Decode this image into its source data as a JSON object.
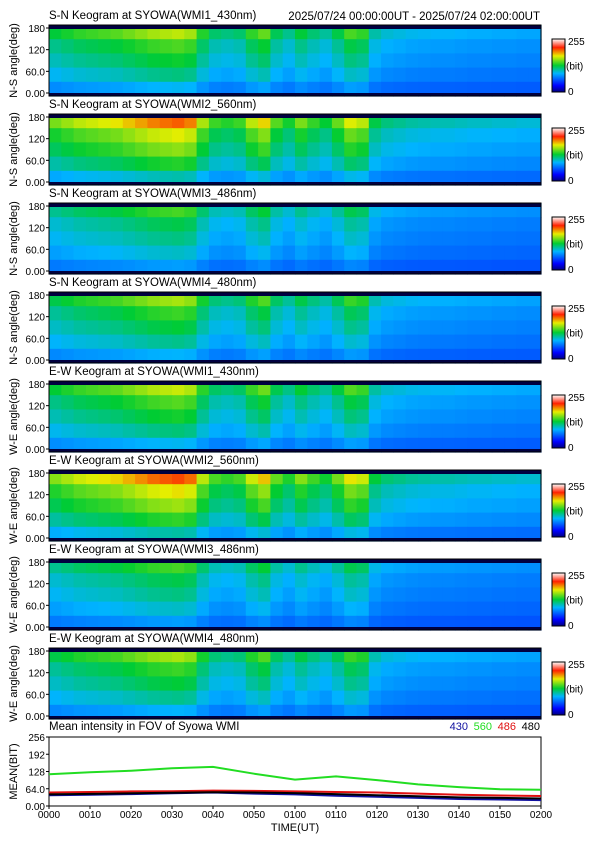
{
  "header": {
    "time_range": "2025/07/24 00:00:00UT - 2025/07/24 02:00:00UT"
  },
  "colorbar": {
    "max_label": "255",
    "unit_label": "(bit)",
    "min_label": "0"
  },
  "chart_data": [
    {
      "type": "heatmap",
      "title": "S-N Keogram at SYOWA(WMI1_430nm)",
      "ylabel": "N-S angle(deg)",
      "yticks": [
        "180",
        "120",
        "60.0",
        "0.00"
      ],
      "ylim": [
        0,
        180
      ],
      "colorbar_range": [
        0,
        255
      ],
      "peak_level": 0.55
    },
    {
      "type": "heatmap",
      "title": "S-N Keogram at SYOWA(WMI2_560nm)",
      "ylabel": "N-S angle(deg)",
      "yticks": [
        "180",
        "120",
        "60.0",
        "0.00"
      ],
      "ylim": [
        0,
        180
      ],
      "colorbar_range": [
        0,
        255
      ],
      "peak_level": 0.72
    },
    {
      "type": "heatmap",
      "title": "S-N Keogram at SYOWA(WMI3_486nm)",
      "ylabel": "N-S angle(deg)",
      "yticks": [
        "180",
        "120",
        "60.0",
        "0.00"
      ],
      "ylim": [
        0,
        180
      ],
      "colorbar_range": [
        0,
        255
      ],
      "peak_level": 0.44
    },
    {
      "type": "heatmap",
      "title": "S-N Keogram at SYOWA(WMI4_480nm)",
      "ylabel": "N-S angle(deg)",
      "yticks": [
        "180",
        "120",
        "60.0",
        "0.00"
      ],
      "ylim": [
        0,
        180
      ],
      "colorbar_range": [
        0,
        255
      ],
      "peak_level": 0.53
    },
    {
      "type": "heatmap",
      "title": "E-W Keogram at SYOWA(WMI1_430nm)",
      "ylabel": "W-E angle(deg)",
      "yticks": [
        "180",
        "120",
        "60.0",
        "0.00"
      ],
      "ylim": [
        0,
        180
      ],
      "colorbar_range": [
        0,
        255
      ],
      "peak_level": 0.56
    },
    {
      "type": "heatmap",
      "title": "E-W Keogram at SYOWA(WMI2_560nm)",
      "ylabel": "W-E angle(deg)",
      "yticks": [
        "180",
        "120",
        "60.0",
        "0.00"
      ],
      "ylim": [
        0,
        180
      ],
      "colorbar_range": [
        0,
        255
      ],
      "peak_level": 0.74
    },
    {
      "type": "heatmap",
      "title": "E-W Keogram at SYOWA(WMI3_486nm)",
      "ylabel": "W-E angle(deg)",
      "yticks": [
        "180",
        "120",
        "60.0",
        "0.00"
      ],
      "ylim": [
        0,
        180
      ],
      "colorbar_range": [
        0,
        255
      ],
      "peak_level": 0.44
    },
    {
      "type": "heatmap",
      "title": "E-W Keogram at SYOWA(WMI4_480nm)",
      "ylabel": "W-E angle(deg)",
      "yticks": [
        "180",
        "120",
        "60.0",
        "0.00"
      ],
      "ylim": [
        0,
        180
      ],
      "colorbar_range": [
        0,
        255
      ],
      "peak_level": 0.53
    },
    {
      "type": "line",
      "title": "Mean intensity in FOV of Syowa WMI",
      "ylabel": "MEAN(BIT)",
      "xlabel": "TIME(UT)",
      "yticks": [
        "256",
        "192",
        "128",
        "64.0",
        "0.00"
      ],
      "ylim": [
        0,
        256
      ],
      "x": [
        "0000",
        "0010",
        "0020",
        "0030",
        "0040",
        "0050",
        "0100",
        "0110",
        "0120",
        "0130",
        "0140",
        "0150",
        "0200"
      ],
      "series": [
        {
          "name": "430",
          "color": "#1010a0",
          "values": [
            40,
            42,
            44,
            47,
            50,
            46,
            43,
            38,
            34,
            30,
            26,
            24,
            22
          ]
        },
        {
          "name": "560",
          "color": "#22dd22",
          "values": [
            118,
            125,
            131,
            140,
            145,
            120,
            98,
            110,
            96,
            80,
            70,
            62,
            60
          ]
        },
        {
          "name": "486",
          "color": "#e01010",
          "values": [
            50,
            52,
            54,
            55,
            57,
            56,
            54,
            52,
            50,
            46,
            42,
            39,
            37
          ]
        },
        {
          "name": "480",
          "color": "#000000",
          "values": [
            43,
            45,
            47,
            49,
            51,
            50,
            48,
            44,
            40,
            36,
            32,
            30,
            28
          ]
        }
      ]
    }
  ]
}
